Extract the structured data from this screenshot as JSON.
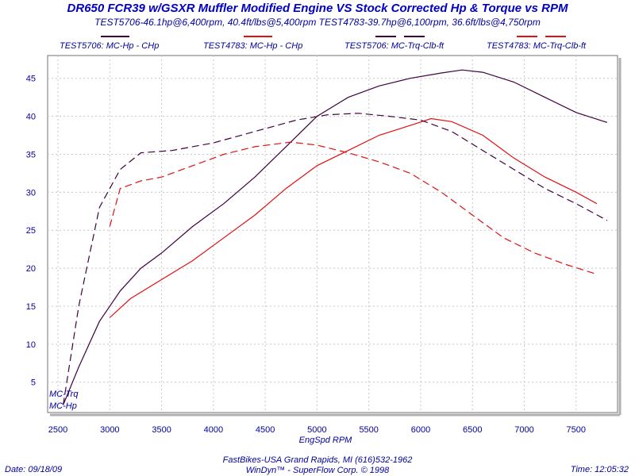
{
  "chart_data": {
    "type": "line",
    "title": "DR650 FCR39 w/GSXR Muffler Modified Engine VS Stock Corrected Hp & Torque vs RPM",
    "subtitle": "TEST5706-46.1hp@6,400rpm, 40.4ft/lbs@5,400rpm TEST4783-39.7hp@6,100rpm, 36.6ft/lbs@4,750rpm",
    "xlabel": "EngSpd  RPM",
    "ylabel": "",
    "xlim": [
      2400,
      7900
    ],
    "ylim": [
      1,
      48
    ],
    "xticks": [
      2500,
      3000,
      3500,
      4000,
      4500,
      5000,
      5500,
      6000,
      6500,
      7000,
      7500
    ],
    "yticks": [
      5,
      10,
      15,
      20,
      25,
      30,
      35,
      40,
      45
    ],
    "grid": true,
    "legend_position": "top",
    "curve_tags": [
      "MC-Trq",
      "MC-Hp"
    ],
    "series": [
      {
        "name": "TEST5706: MC-Hp - CHp",
        "color": "#400040",
        "dash": "solid",
        "x": [
          2550,
          2700,
          2900,
          3100,
          3300,
          3500,
          3800,
          4100,
          4400,
          4700,
          5000,
          5300,
          5600,
          5900,
          6200,
          6400,
          6600,
          6900,
          7200,
          7500,
          7800
        ],
        "y": [
          2,
          7,
          13,
          17,
          20,
          22,
          25.5,
          28.5,
          32,
          36,
          40,
          42.5,
          44,
          45,
          45.7,
          46.1,
          45.8,
          44.5,
          42.5,
          40.5,
          39.2
        ]
      },
      {
        "name": "TEST4783: MC-Hp - CHp",
        "color": "#e01010",
        "dash": "solid",
        "x": [
          3000,
          3200,
          3500,
          3800,
          4100,
          4400,
          4700,
          5000,
          5300,
          5600,
          5900,
          6100,
          6300,
          6600,
          6900,
          7200,
          7500,
          7700
        ],
        "y": [
          13.5,
          16,
          18.5,
          21,
          24,
          27,
          30.5,
          33.5,
          35.5,
          37.5,
          38.8,
          39.7,
          39.3,
          37.5,
          34.5,
          32,
          30,
          28.5
        ]
      },
      {
        "name": "TEST5706: MC-Trq-Clb-ft",
        "color": "#400040",
        "dash": "dashed",
        "x": [
          2550,
          2700,
          2900,
          3100,
          3300,
          3600,
          4000,
          4400,
          4800,
          5100,
          5400,
          5700,
          6000,
          6300,
          6600,
          6900,
          7200,
          7500,
          7800
        ],
        "y": [
          2,
          15,
          28,
          33,
          35.2,
          35.5,
          36.5,
          38,
          39.5,
          40.2,
          40.4,
          40,
          39.5,
          38,
          35.5,
          33,
          30.5,
          28.5,
          26.3
        ]
      },
      {
        "name": "TEST4783: MC-Trq-Clb-ft",
        "color": "#e01010",
        "dash": "dashed",
        "x": [
          3000,
          3100,
          3300,
          3500,
          3800,
          4100,
          4400,
          4750,
          5000,
          5300,
          5600,
          5900,
          6200,
          6500,
          6800,
          7100,
          7400,
          7700
        ],
        "y": [
          25.5,
          30.5,
          31.5,
          32,
          33.5,
          35,
          36,
          36.6,
          36.2,
          35.2,
          34,
          32.5,
          30,
          27,
          24,
          22,
          20.5,
          19.2
        ]
      }
    ]
  },
  "footer": {
    "date": "Date: 09/18/09",
    "line1": "FastBikes-USA Grand Rapids, MI (616)532-1962",
    "line2": "WinDyn™ - SuperFlow Corp. © 1998",
    "time": "Time: 12:05:32"
  }
}
